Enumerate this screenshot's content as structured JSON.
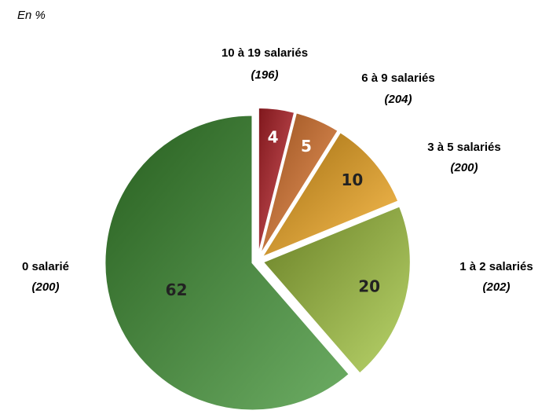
{
  "chart_data": {
    "type": "pie",
    "subtitle": "En %",
    "categories": [
      "10 à 19 salariés",
      "6 à 9 salariés",
      "3 à 5 salariés",
      "1 à 2 salariés",
      "0 salarié"
    ],
    "sample_sizes": [
      "(196)",
      "(204)",
      "(200)",
      "(202)",
      "(200)"
    ],
    "values": [
      4,
      5,
      10,
      20,
      62
    ],
    "colors": [
      "#c4232b",
      "#e8792c",
      "#f8a91a",
      "#a2c53a",
      "#3c9230"
    ]
  }
}
